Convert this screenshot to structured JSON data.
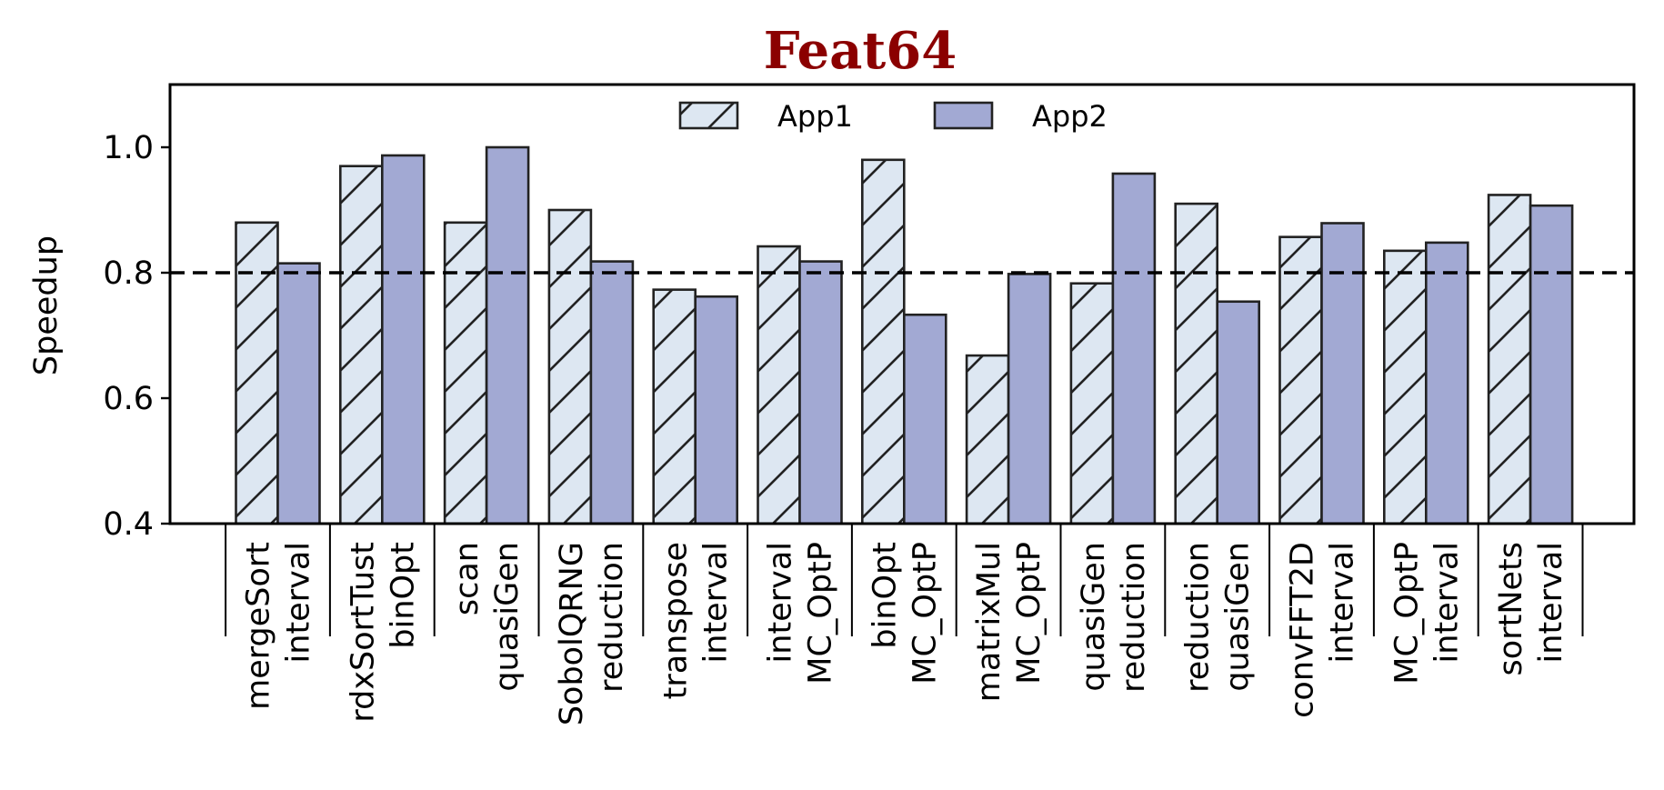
{
  "chart_data": {
    "type": "bar",
    "title": "Feat64",
    "title_color": "#8b0000",
    "xlabel": "",
    "ylabel": "Speedup",
    "ylim": [
      0.4,
      1.1
    ],
    "yticks": [
      "0.4",
      "0.6",
      "0.8",
      "1.0"
    ],
    "reference_line": 0.8,
    "grid": false,
    "legend_position": "top-center",
    "groups": [
      {
        "app1": "mergeSort",
        "app2": "interval"
      },
      {
        "app1": "rdxSortTust",
        "app2": "binOpt"
      },
      {
        "app1": "scan",
        "app2": "quasiGen"
      },
      {
        "app1": "SobolQRNG",
        "app2": "reduction"
      },
      {
        "app1": "transpose",
        "app2": "interval"
      },
      {
        "app1": "interval",
        "app2": "MC_OptP"
      },
      {
        "app1": "binOpt",
        "app2": "MC_OptP"
      },
      {
        "app1": "matrixMul",
        "app2": "MC_OptP"
      },
      {
        "app1": "quasiGen",
        "app2": "reduction"
      },
      {
        "app1": "reduction",
        "app2": "quasiGen"
      },
      {
        "app1": "convFFT2D",
        "app2": "interval"
      },
      {
        "app1": "MC_OptP",
        "app2": "interval"
      },
      {
        "app1": "sortNets",
        "app2": "interval"
      }
    ],
    "series": [
      {
        "name": "App1",
        "color": "#dde7f2",
        "hatch": "diagonal",
        "values": [
          0.88,
          0.97,
          0.88,
          0.9,
          0.773,
          0.842,
          0.98,
          0.668,
          0.783,
          0.91,
          0.857,
          0.835,
          0.924
        ]
      },
      {
        "name": "App2",
        "color": "#a2a9d3",
        "hatch": "none",
        "values": [
          0.815,
          0.987,
          1.0,
          0.818,
          0.762,
          0.818,
          0.733,
          0.798,
          0.958,
          0.754,
          0.879,
          0.848,
          0.907
        ]
      }
    ]
  }
}
